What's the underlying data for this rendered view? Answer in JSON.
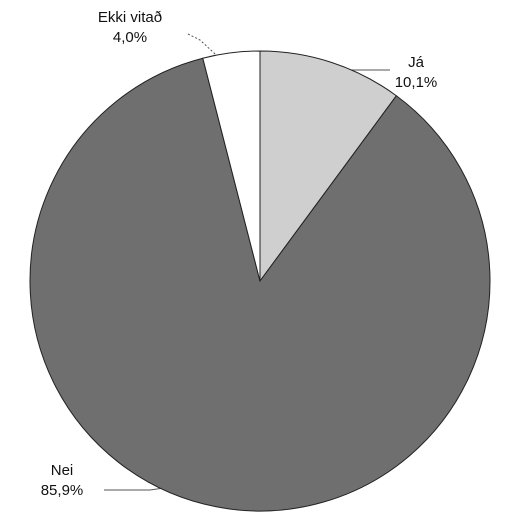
{
  "chart_data": {
    "type": "pie",
    "categories": [
      "Já",
      "Nei",
      "Ekki vitað"
    ],
    "values": [
      10.1,
      85.9,
      4.0
    ],
    "value_labels": [
      "10,1%",
      "85,9%",
      "4,0%"
    ],
    "colors": [
      "#cfcfcf",
      "#6f6f6f",
      "#ffffff"
    ]
  }
}
